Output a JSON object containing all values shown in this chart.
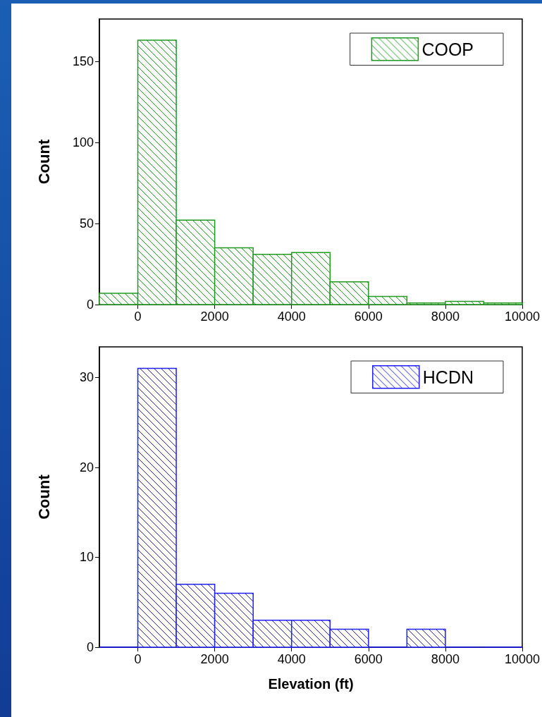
{
  "chart_data": [
    {
      "type": "histogram",
      "bins": [
        -1000,
        0,
        1000,
        2000,
        3000,
        4000,
        5000,
        6000,
        7000,
        8000,
        9000,
        10000
      ],
      "series": [
        {
          "name": "COOP",
          "color": "#1f9a1f",
          "values": [
            7,
            163,
            52,
            35,
            31,
            32,
            14,
            5,
            1,
            2,
            1
          ]
        }
      ],
      "xlim": [
        -1000,
        10000
      ],
      "xticks": [
        0,
        2000,
        4000,
        6000,
        8000,
        10000
      ],
      "ylim": [
        0,
        176
      ],
      "yticks": [
        0,
        50,
        100,
        150
      ],
      "ylabel": "Count",
      "legend": "top right",
      "grid": false
    },
    {
      "type": "histogram",
      "bins": [
        -1000,
        0,
        1000,
        2000,
        3000,
        4000,
        5000,
        6000,
        7000,
        8000,
        9000,
        10000
      ],
      "series": [
        {
          "name": "HCDN",
          "color": "#1f1fff",
          "values": [
            0,
            31,
            7,
            6,
            3,
            3,
            2,
            0,
            2,
            0,
            0
          ]
        }
      ],
      "xlim": [
        -1000,
        10000
      ],
      "xticks": [
        0,
        2000,
        4000,
        6000,
        8000,
        10000
      ],
      "ylim": [
        0,
        33.4
      ],
      "yticks": [
        0,
        10,
        20,
        30
      ],
      "xlabel": "Elevation (ft)",
      "ylabel": "Count",
      "legend": "top right",
      "grid": false
    }
  ]
}
